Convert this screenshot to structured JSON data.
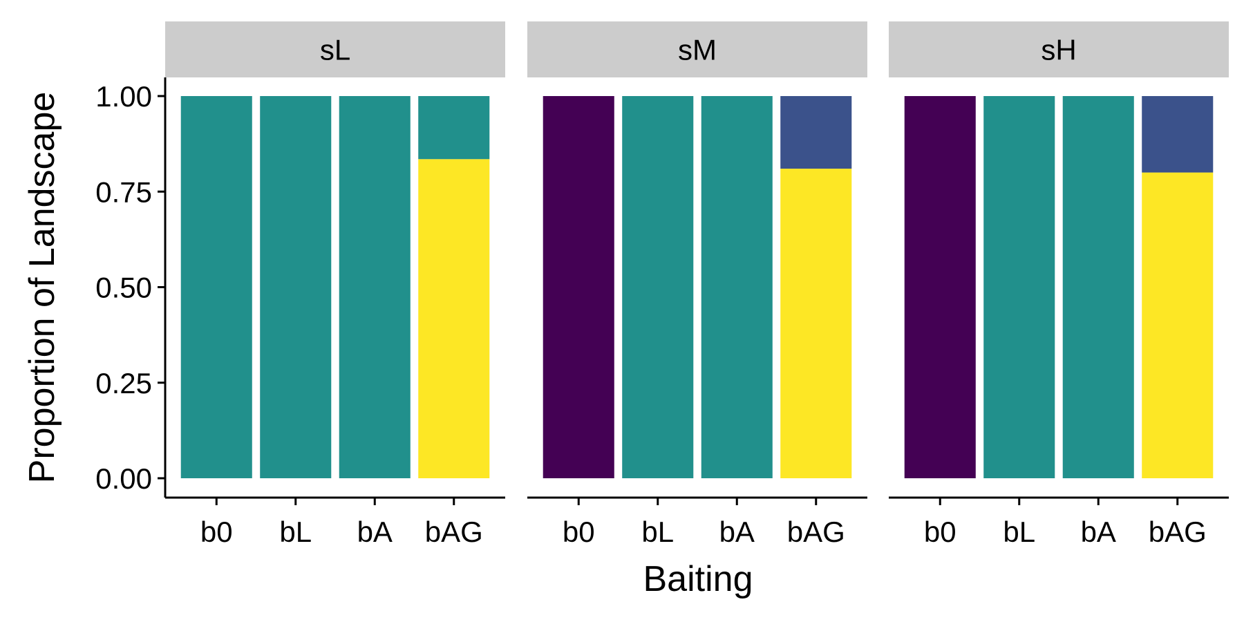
{
  "chart_data": {
    "type": "bar",
    "stacked": true,
    "facet_variable_labels": [
      "sL",
      "sM",
      "sH"
    ],
    "xlabel": "Baiting",
    "ylabel": "Proportion of Landscape",
    "categories": [
      "b0",
      "bL",
      "bA",
      "bAG"
    ],
    "ylim": [
      0,
      1
    ],
    "yticks": [
      "0.00",
      "0.25",
      "0.50",
      "0.75",
      "1.00"
    ],
    "grid": false,
    "facets": [
      {
        "label": "sL",
        "bars": [
          {
            "category": "b0",
            "segments": [
              {
                "color": "#21908C",
                "value": 1.0
              }
            ]
          },
          {
            "category": "bL",
            "segments": [
              {
                "color": "#21908C",
                "value": 1.0
              }
            ]
          },
          {
            "category": "bA",
            "segments": [
              {
                "color": "#21908C",
                "value": 1.0
              }
            ]
          },
          {
            "category": "bAG",
            "segments": [
              {
                "color": "#FDE725",
                "value": 0.835
              },
              {
                "color": "#21908C",
                "value": 0.165
              }
            ]
          }
        ]
      },
      {
        "label": "sM",
        "bars": [
          {
            "category": "b0",
            "segments": [
              {
                "color": "#440154",
                "value": 1.0
              }
            ]
          },
          {
            "category": "bL",
            "segments": [
              {
                "color": "#21908C",
                "value": 1.0
              }
            ]
          },
          {
            "category": "bA",
            "segments": [
              {
                "color": "#21908C",
                "value": 1.0
              }
            ]
          },
          {
            "category": "bAG",
            "segments": [
              {
                "color": "#FDE725",
                "value": 0.81
              },
              {
                "color": "#3B528B",
                "value": 0.19
              }
            ]
          }
        ]
      },
      {
        "label": "sH",
        "bars": [
          {
            "category": "b0",
            "segments": [
              {
                "color": "#440154",
                "value": 1.0
              }
            ]
          },
          {
            "category": "bL",
            "segments": [
              {
                "color": "#21908C",
                "value": 1.0
              }
            ]
          },
          {
            "category": "bA",
            "segments": [
              {
                "color": "#21908C",
                "value": 1.0
              }
            ]
          },
          {
            "category": "bAG",
            "segments": [
              {
                "color": "#FDE725",
                "value": 0.8
              },
              {
                "color": "#3B528B",
                "value": 0.2
              }
            ]
          }
        ]
      }
    ],
    "colors": {
      "strip_background": "#CCCCCC",
      "axis": "#000000",
      "background": "#FFFFFF"
    }
  }
}
